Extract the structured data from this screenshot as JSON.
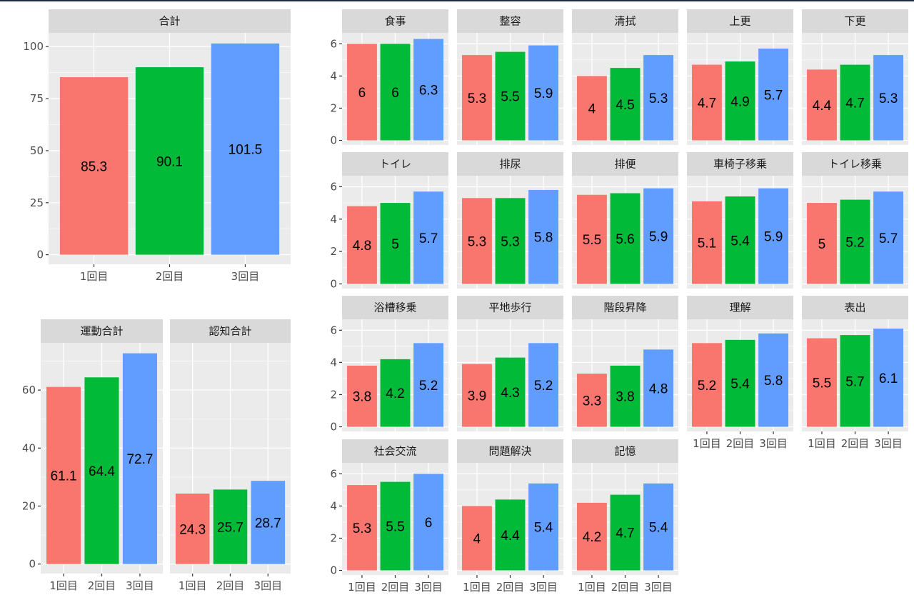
{
  "chart_data": [
    {
      "type": "bar",
      "title": "合計",
      "categories": [
        "1回目",
        "2回目",
        "3回目"
      ],
      "values": [
        85.3,
        90.1,
        101.5
      ],
      "ylim": [
        0,
        106.6
      ],
      "yticks": [
        0,
        25,
        50,
        75,
        100
      ],
      "grid": true
    },
    {
      "type": "bar",
      "title": "運動合計",
      "categories": [
        "1回目",
        "2回目",
        "3回目"
      ],
      "values": [
        61.1,
        64.4,
        72.7
      ],
      "ylim": [
        0,
        76.3
      ],
      "yticks": [
        0,
        20,
        40,
        60
      ],
      "grid": true
    },
    {
      "type": "bar",
      "title": "認知合計",
      "categories": [
        "1回目",
        "2回目",
        "3回目"
      ],
      "values": [
        24.3,
        25.7,
        28.7
      ],
      "ylim": [
        0,
        76.3
      ],
      "yticks": [
        0,
        20,
        40,
        60
      ],
      "grid": true
    },
    {
      "type": "bar",
      "title": "食事",
      "categories": [
        "1回目",
        "2回目",
        "3回目"
      ],
      "values": [
        6,
        6,
        6.3
      ],
      "ylim": [
        0,
        6.68
      ],
      "yticks": [
        0,
        2,
        4,
        6
      ]
    },
    {
      "type": "bar",
      "title": "整容",
      "categories": [
        "1回目",
        "2回目",
        "3回目"
      ],
      "values": [
        5.3,
        5.5,
        5.9
      ],
      "ylim": [
        0,
        6.68
      ],
      "yticks": [
        0,
        2,
        4,
        6
      ]
    },
    {
      "type": "bar",
      "title": "清拭",
      "categories": [
        "1回目",
        "2回目",
        "3回目"
      ],
      "values": [
        4,
        4.5,
        5.3
      ],
      "ylim": [
        0,
        6.68
      ],
      "yticks": [
        0,
        2,
        4,
        6
      ]
    },
    {
      "type": "bar",
      "title": "上更",
      "categories": [
        "1回目",
        "2回目",
        "3回目"
      ],
      "values": [
        4.7,
        4.9,
        5.7
      ],
      "ylim": [
        0,
        6.68
      ],
      "yticks": [
        0,
        2,
        4,
        6
      ]
    },
    {
      "type": "bar",
      "title": "下更",
      "categories": [
        "1回目",
        "2回目",
        "3回目"
      ],
      "values": [
        4.4,
        4.7,
        5.3
      ],
      "ylim": [
        0,
        6.68
      ],
      "yticks": [
        0,
        2,
        4,
        6
      ]
    },
    {
      "type": "bar",
      "title": "トイレ",
      "categories": [
        "1回目",
        "2回目",
        "3回目"
      ],
      "values": [
        4.8,
        5,
        5.7
      ],
      "ylim": [
        0,
        6.68
      ],
      "yticks": [
        0,
        2,
        4,
        6
      ]
    },
    {
      "type": "bar",
      "title": "排尿",
      "categories": [
        "1回目",
        "2回目",
        "3回目"
      ],
      "values": [
        5.3,
        5.3,
        5.8
      ],
      "ylim": [
        0,
        6.68
      ],
      "yticks": [
        0,
        2,
        4,
        6
      ]
    },
    {
      "type": "bar",
      "title": "排便",
      "categories": [
        "1回目",
        "2回目",
        "3回目"
      ],
      "values": [
        5.5,
        5.6,
        5.9
      ],
      "ylim": [
        0,
        6.68
      ],
      "yticks": [
        0,
        2,
        4,
        6
      ]
    },
    {
      "type": "bar",
      "title": "車椅子移乗",
      "categories": [
        "1回目",
        "2回目",
        "3回目"
      ],
      "values": [
        5.1,
        5.4,
        5.9
      ],
      "ylim": [
        0,
        6.68
      ],
      "yticks": [
        0,
        2,
        4,
        6
      ]
    },
    {
      "type": "bar",
      "title": "トイレ移乗",
      "categories": [
        "1回目",
        "2回目",
        "3回目"
      ],
      "values": [
        5,
        5.2,
        5.7
      ],
      "ylim": [
        0,
        6.68
      ],
      "yticks": [
        0,
        2,
        4,
        6
      ]
    },
    {
      "type": "bar",
      "title": "浴槽移乗",
      "categories": [
        "1回目",
        "2回目",
        "3回目"
      ],
      "values": [
        3.8,
        4.2,
        5.2
      ],
      "ylim": [
        0,
        6.68
      ],
      "yticks": [
        0,
        2,
        4,
        6
      ]
    },
    {
      "type": "bar",
      "title": "平地歩行",
      "categories": [
        "1回目",
        "2回目",
        "3回目"
      ],
      "values": [
        3.9,
        4.3,
        5.2
      ],
      "ylim": [
        0,
        6.68
      ],
      "yticks": [
        0,
        2,
        4,
        6
      ]
    },
    {
      "type": "bar",
      "title": "階段昇降",
      "categories": [
        "1回目",
        "2回目",
        "3回目"
      ],
      "values": [
        3.3,
        3.8,
        4.8
      ],
      "ylim": [
        0,
        6.68
      ],
      "yticks": [
        0,
        2,
        4,
        6
      ]
    },
    {
      "type": "bar",
      "title": "理解",
      "categories": [
        "1回目",
        "2回目",
        "3回目"
      ],
      "values": [
        5.2,
        5.4,
        5.8
      ],
      "ylim": [
        0,
        6.68
      ],
      "yticks": [
        0,
        2,
        4,
        6
      ]
    },
    {
      "type": "bar",
      "title": "表出",
      "categories": [
        "1回目",
        "2回目",
        "3回目"
      ],
      "values": [
        5.5,
        5.7,
        6.1
      ],
      "ylim": [
        0,
        6.68
      ],
      "yticks": [
        0,
        2,
        4,
        6
      ]
    },
    {
      "type": "bar",
      "title": "社会交流",
      "categories": [
        "1回目",
        "2回目",
        "3回目"
      ],
      "values": [
        5.3,
        5.5,
        6
      ],
      "ylim": [
        0,
        6.68
      ],
      "yticks": [
        0,
        2,
        4,
        6
      ]
    },
    {
      "type": "bar",
      "title": "問題解決",
      "categories": [
        "1回目",
        "2回目",
        "3回目"
      ],
      "values": [
        4,
        4.4,
        5.4
      ],
      "ylim": [
        0,
        6.68
      ],
      "yticks": [
        0,
        2,
        4,
        6
      ]
    },
    {
      "type": "bar",
      "title": "記憶",
      "categories": [
        "1回目",
        "2回目",
        "3回目"
      ],
      "values": [
        4.2,
        4.7,
        5.4
      ],
      "ylim": [
        0,
        6.68
      ],
      "yticks": [
        0,
        2,
        4,
        6
      ]
    }
  ],
  "colors": {
    "series": [
      "#F8766D",
      "#00BA38",
      "#619CFF"
    ],
    "panel_bg": "#EBEBEB",
    "strip_bg": "#D9D9D9",
    "grid": "#FFFFFF"
  }
}
